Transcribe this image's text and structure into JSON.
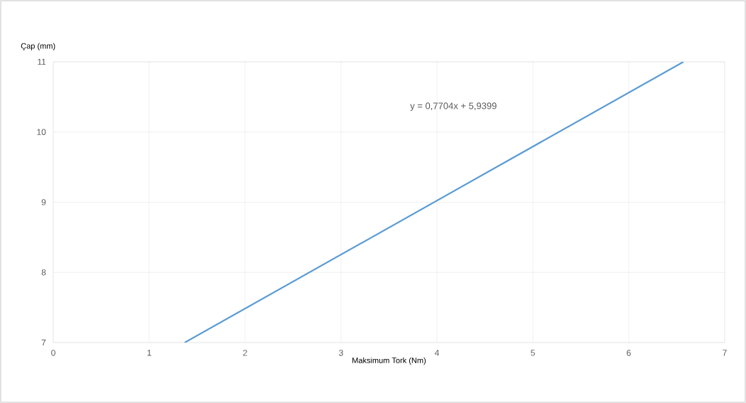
{
  "chart_data": {
    "type": "line",
    "xlabel": "Maksimum Tork (Nm)",
    "ylabel": "Çap (mm)",
    "annotations": [
      "y = 0,7704x + 5,9399"
    ],
    "series": [
      {
        "color": "#5b9bd5",
        "x": [
          1.37,
          6.57
        ],
        "values": [
          7,
          11
        ]
      }
    ],
    "xlim": [
      0,
      7
    ],
    "ylim": [
      7,
      11
    ],
    "xticks": [
      0,
      1,
      2,
      3,
      4,
      5,
      6,
      7
    ],
    "yticks": [
      7,
      8,
      9,
      10,
      11
    ],
    "grid": true,
    "marker": "none",
    "line_style": "solid"
  }
}
